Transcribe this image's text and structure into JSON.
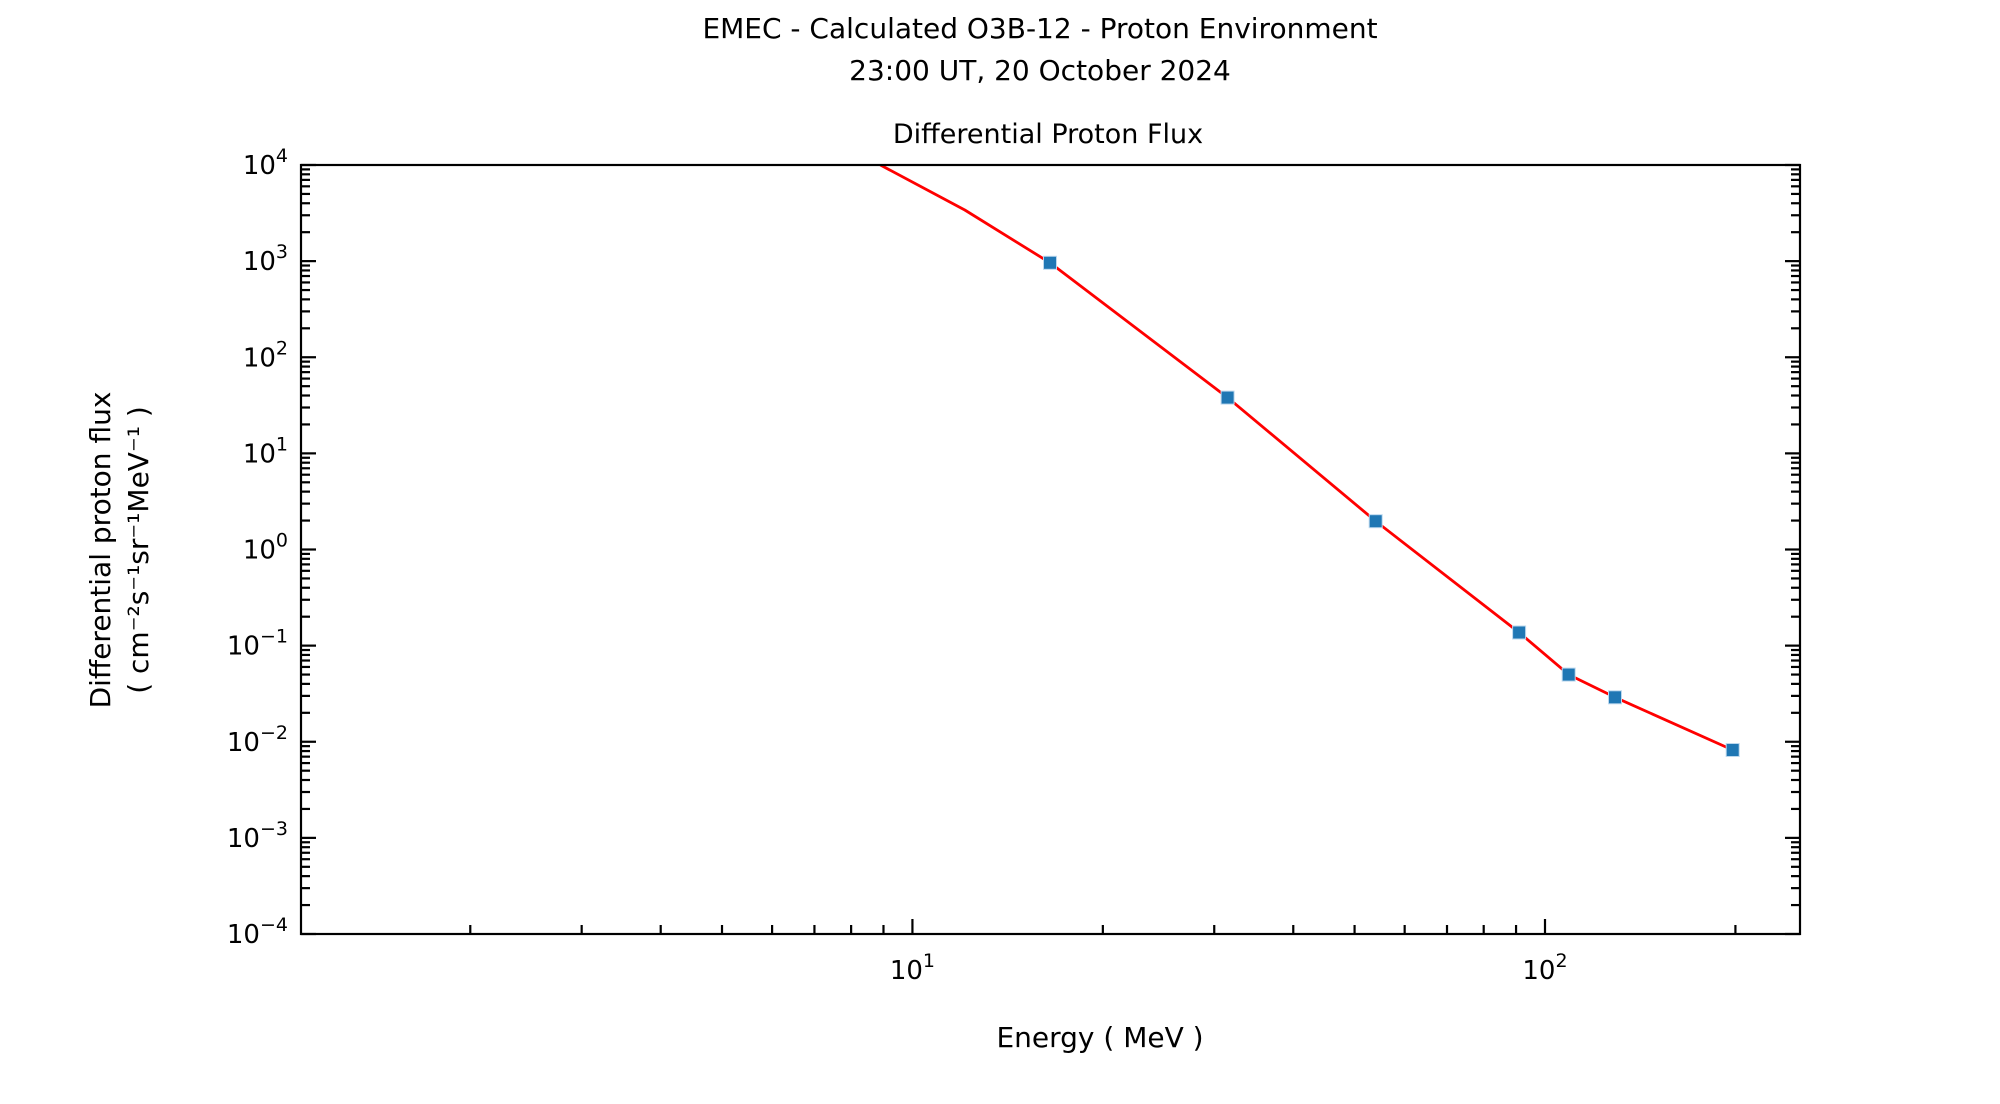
{
  "chart_data": {
    "type": "line",
    "title": "EMEC - Calculated O3B-12 - Proton Environment",
    "subtitle": "23:00 UT, 20 October 2024",
    "axes_title": "Differential Proton Flux",
    "xlabel": "Energy ( MeV )",
    "ylabel": "Differential proton flux",
    "ylabel_units": "( cm⁻²s⁻¹sr⁻¹MeV⁻¹ )",
    "x_scale": "log",
    "y_scale": "log",
    "xlim": [
      1.08,
      253
    ],
    "ylim": [
      0.0001,
      10000
    ],
    "x_major_tick_exponents": [
      1,
      2
    ],
    "y_major_tick_exponents": [
      4,
      3,
      2,
      1,
      0,
      -1,
      -2,
      -3,
      -4
    ],
    "grid": false,
    "legend": "none",
    "colors": {
      "line": "#ff0000",
      "marker": "#1f77b4",
      "axes": "#000000",
      "background": "#ffffff"
    },
    "series": [
      {
        "name": "differential-proton-flux",
        "marker": "square",
        "points": [
          [
            16.5,
            960
          ],
          [
            31.5,
            38
          ],
          [
            54,
            1.97
          ],
          [
            91,
            0.137
          ],
          [
            109,
            0.05
          ],
          [
            129,
            0.029
          ],
          [
            198,
            0.0082
          ]
        ],
        "clipped_lead_points": [
          [
            8.9,
            10000
          ],
          [
            12.1,
            3400
          ]
        ]
      }
    ]
  }
}
